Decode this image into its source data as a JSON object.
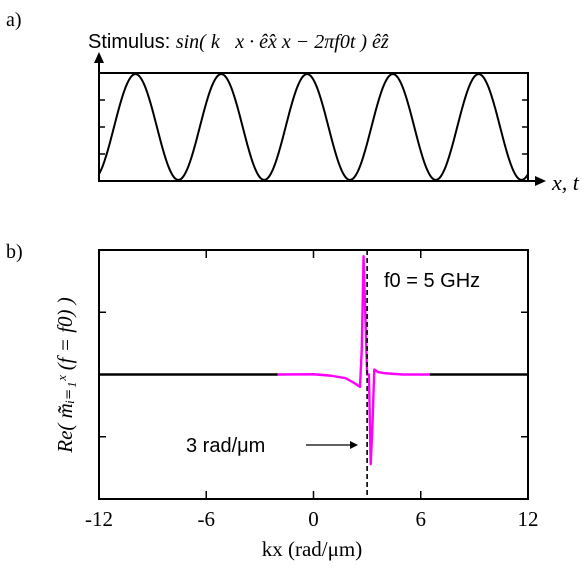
{
  "panels": {
    "a": {
      "panel_label": "a)",
      "title_prefix": "Stimulus: ",
      "title_formula": "sin( k⃗x · ê̂x x − 2πf0t ) ê̂z",
      "axis_label": "x, t"
    },
    "b": {
      "panel_label": "b)",
      "ylabel": "Re( m̃̃ᵢ₌₁ˣ (f = f0) )",
      "xlabel": "kx (rad/μm)",
      "frequency_annotation": "f0 = 5 GHz",
      "marker_annotation": "3 rad/μm"
    }
  },
  "colors": {
    "curve_black": "#000000",
    "curve_magenta": "#ff00ff",
    "background": "#ffffff"
  },
  "chart_data": [
    {
      "type": "line",
      "panel": "a",
      "description_free": true,
      "function": "sin",
      "cycles_shown": 5,
      "amplitude": 1,
      "ylim": [
        -1,
        1
      ],
      "x_ticks": [],
      "y_ticks": []
    },
    {
      "type": "line",
      "panel": "b",
      "xlabel": "kx (rad/μm)",
      "ylabel": "Re( m̃ᵢ₌₁ˣ (f = f0) )",
      "xlim": [
        -12,
        12
      ],
      "ylim": [
        -1,
        1
      ],
      "x_ticks": [
        -12,
        -6,
        0,
        6,
        12
      ],
      "x_tick_labels": [
        "-12",
        "-6",
        "0",
        "6",
        "12"
      ],
      "vline": 3,
      "series": [
        {
          "color": "#000000",
          "segment": "left",
          "x": [
            -12,
            -2
          ],
          "y": [
            0,
            0
          ]
        },
        {
          "color": "#ff00ff",
          "segment": "resonance",
          "x": [
            -2,
            0,
            1,
            1.8,
            2.3,
            2.6,
            2.7,
            2.8,
            3.0,
            3.1,
            3.2,
            3.3,
            3.4,
            3.6,
            4.0,
            5.0,
            6.5
          ],
          "y": [
            0,
            0.002,
            -0.01,
            -0.03,
            -0.07,
            -0.1,
            0.2,
            0.95,
            0.0,
            0.0,
            -0.72,
            -0.4,
            0.04,
            0.02,
            0.01,
            0.0,
            0.0
          ]
        },
        {
          "color": "#000000",
          "segment": "right",
          "x": [
            6.5,
            12
          ],
          "y": [
            0,
            0
          ]
        }
      ]
    }
  ]
}
